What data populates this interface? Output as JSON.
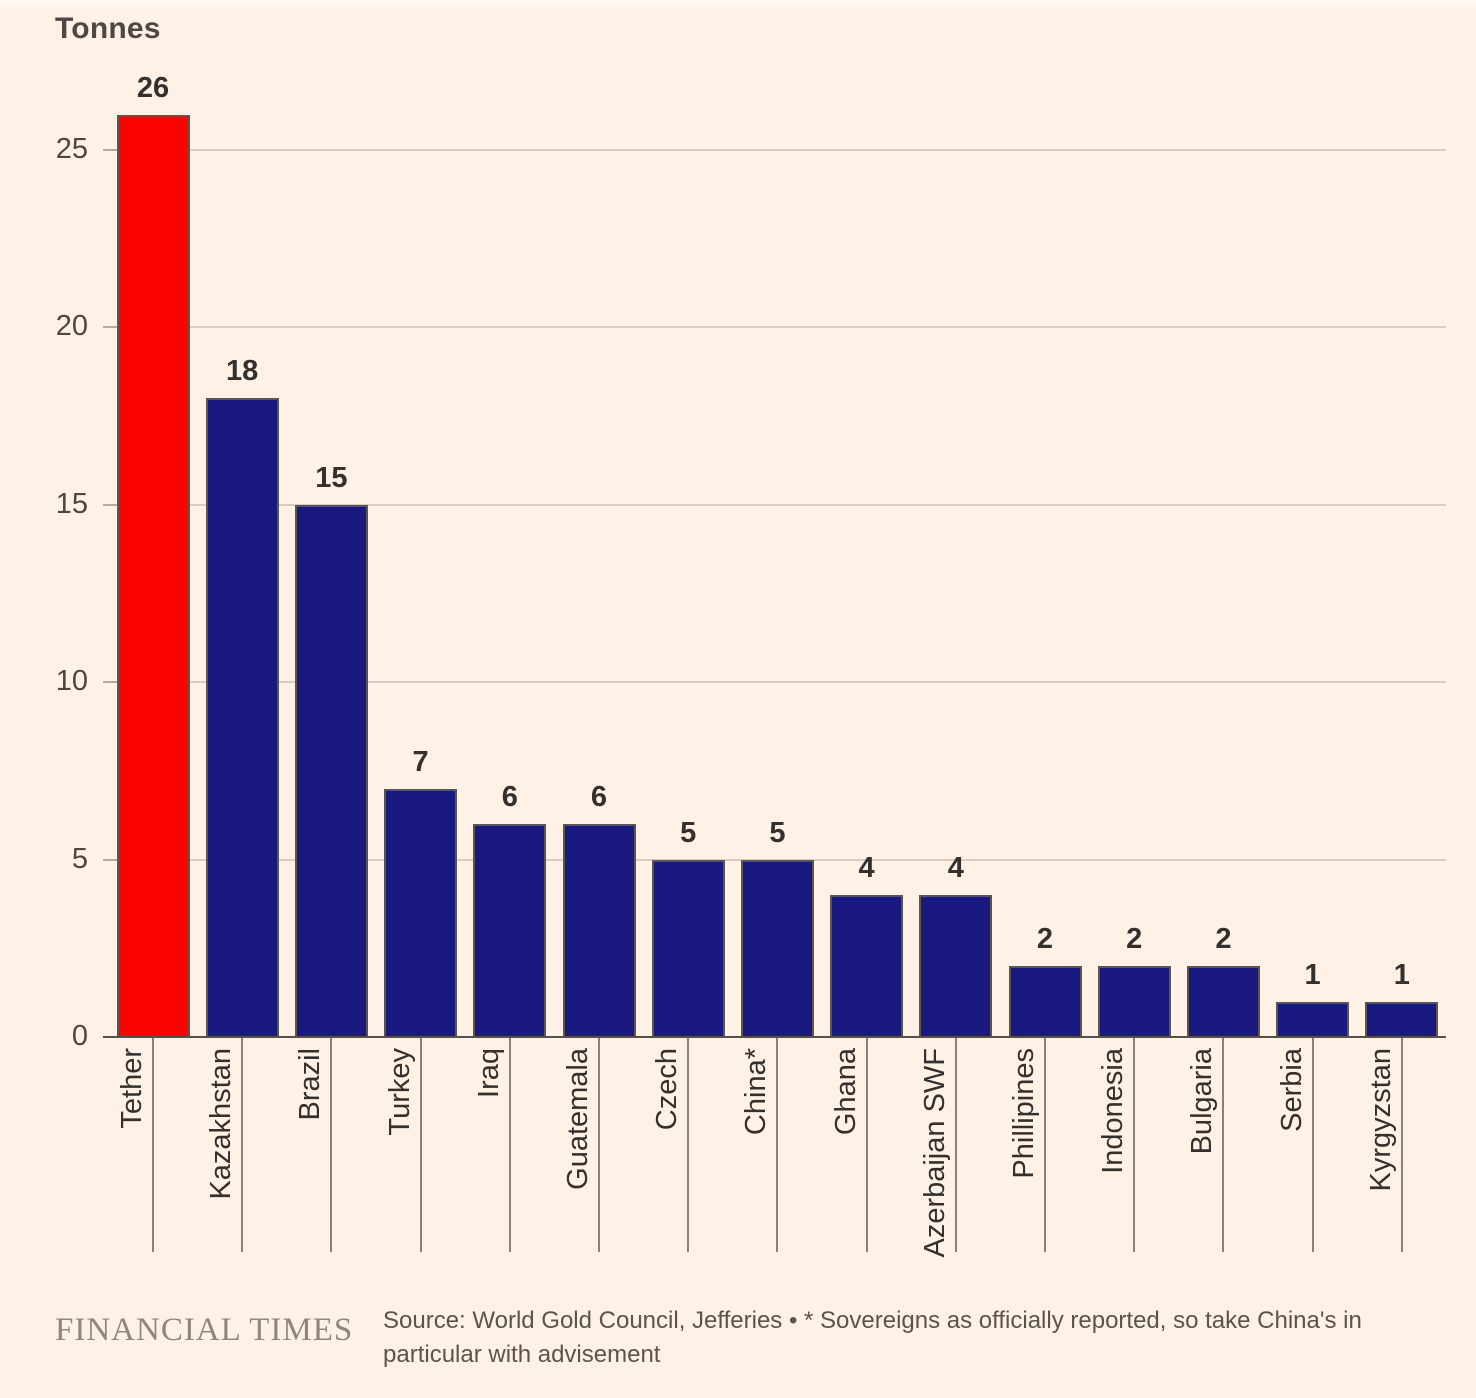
{
  "title": "Tonnes",
  "footer": {
    "brand": "FINANCIAL TIMES",
    "source": "Source: World Gold Council, Jefferies • * Sovereigns as officially reported, so take China's in particular with advisement"
  },
  "chart_data": {
    "type": "bar",
    "title": "Tonnes",
    "ylabel": "Tonnes",
    "categories": [
      "Tether",
      "Kazakhstan",
      "Brazil",
      "Turkey",
      "Iraq",
      "Guatemala",
      "Czech",
      "China*",
      "Ghana",
      "Azerbaijan SWF",
      "Phillipines",
      "Indonesia",
      "Bulgaria",
      "Serbia",
      "Kyrgyzstan"
    ],
    "values": [
      26,
      18,
      15,
      7,
      6,
      6,
      5,
      5,
      4,
      4,
      2,
      2,
      2,
      1,
      1
    ],
    "highlight_index": 0,
    "highlight_color": "#fb0400",
    "bar_color": "#191980",
    "y_ticks": [
      0,
      5,
      10,
      15,
      20,
      25
    ],
    "ylim": [
      0,
      26
    ],
    "grid": true,
    "legend": "none",
    "source": "Source: World Gold Council, Jefferies • * Sovereigns as officially reported, so take China's in particular with advisement",
    "brand": "FINANCIAL TIMES"
  }
}
